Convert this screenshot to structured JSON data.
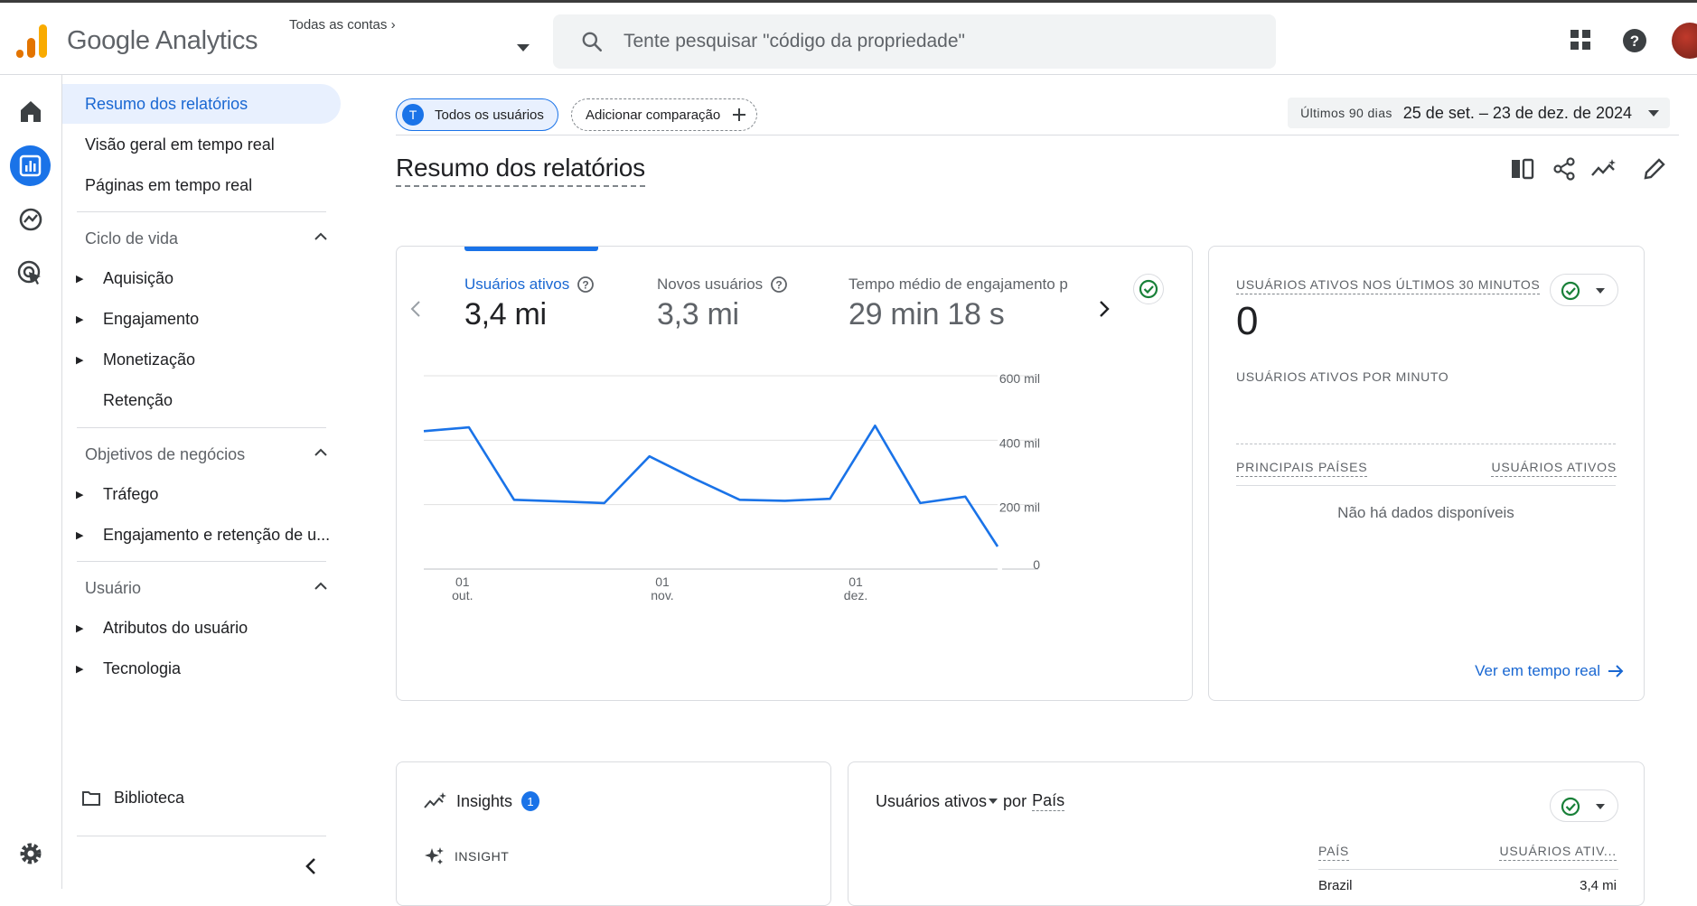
{
  "header": {
    "brand": "Google Analytics",
    "account_crumb": "Todas as contas",
    "search_placeholder": "Tente pesquisar \"código da propriedade\"",
    "icons": [
      "apps-grid-icon",
      "help-icon",
      "avatar"
    ]
  },
  "rail": [
    "home-icon",
    "reports-icon",
    "explore-icon",
    "advertising-icon",
    "settings-icon"
  ],
  "sidebar": {
    "top_items": [
      "Resumo dos relatórios",
      "Visão geral em tempo real",
      "Páginas em tempo real"
    ],
    "sections": [
      {
        "title": "Ciclo de vida",
        "items": [
          {
            "label": "Aquisição",
            "expandable": true
          },
          {
            "label": "Engajamento",
            "expandable": true
          },
          {
            "label": "Monetização",
            "expandable": true
          },
          {
            "label": "Retenção",
            "expandable": false
          }
        ]
      },
      {
        "title": "Objetivos de negócios",
        "items": [
          {
            "label": "Tráfego",
            "expandable": true
          },
          {
            "label": "Engajamento e retenção de u...",
            "expandable": true
          }
        ]
      },
      {
        "title": "Usuário",
        "items": [
          {
            "label": "Atributos do usuário",
            "expandable": true
          },
          {
            "label": "Tecnologia",
            "expandable": true
          }
        ]
      }
    ],
    "library": "Biblioteca"
  },
  "toolbar": {
    "user_chip_initial": "T",
    "user_chip": "Todos os usuários",
    "add_comparison": "Adicionar comparação",
    "date_prefix": "Últimos 90 dias",
    "date_range": "25 de set. – 23 de dez. de 2024"
  },
  "page_title": "Resumo dos relatórios",
  "metrics": [
    {
      "label": "Usuários ativos",
      "value": "3,4 mi"
    },
    {
      "label": "Novos usuários",
      "value": "3,3 mi"
    },
    {
      "label": "Tempo médio de engajamento p",
      "value": "29 min 18 s"
    }
  ],
  "chart_data": {
    "type": "line",
    "series": [
      {
        "values": [
          428000,
          440000,
          215000,
          210000,
          205000,
          350000,
          280000,
          215000,
          212000,
          218000,
          445000,
          205000,
          225000,
          70000
        ]
      }
    ],
    "x": [
      "2024-09-25",
      "2024-10-02",
      "2024-10-09",
      "2024-10-16",
      "2024-10-23",
      "2024-10-30",
      "2024-11-06",
      "2024-11-13",
      "2024-11-20",
      "2024-11-27",
      "2024-12-04",
      "2024-12-11",
      "2024-12-18",
      "2024-12-23"
    ],
    "x_ticks": [
      {
        "day": "01",
        "month": "out."
      },
      {
        "day": "01",
        "month": "nov."
      },
      {
        "day": "01",
        "month": "dez."
      }
    ],
    "y_ticks": [
      "0",
      "200 mil",
      "400 mil",
      "600 mil"
    ],
    "ylim": [
      0,
      600000
    ],
    "grid": true,
    "color": "#1a73e8"
  },
  "realtime": {
    "title": "USUÁRIOS ATIVOS NOS ÚLTIMOS 30 MINUTOS",
    "value": "0",
    "per_minute": "USUÁRIOS ATIVOS POR MINUTO",
    "col_country": "PRINCIPAIS PAÍSES",
    "col_users": "USUÁRIOS ATIVOS",
    "empty": "Não há dados disponíveis",
    "link": "Ver em tempo real"
  },
  "insights": {
    "title": "Insights",
    "badge": "1",
    "subtitle": "INSIGHT"
  },
  "country_card": {
    "metric": "Usuários ativos",
    "by": "por",
    "dimension": "País",
    "col_country": "PAÍS",
    "col_users": "USUÁRIOS ATIV...",
    "rows": [
      {
        "country": "Brazil",
        "users": "3,4 mi"
      }
    ]
  },
  "colors": {
    "accent": "#1a73e8",
    "success": "#188038",
    "logo_orange": "#f9ab00",
    "logo_dark_orange": "#e37400"
  }
}
